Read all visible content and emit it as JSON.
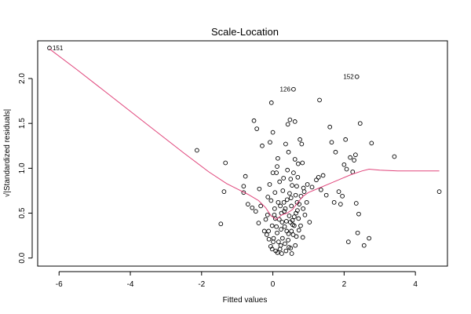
{
  "chart_data": {
    "type": "scatter",
    "title": "Scale-Location",
    "xlabel": "Fitted values",
    "ylabel": "√|Standardized residuals|",
    "xlim": [
      -6.6,
      4.9
    ],
    "ylim": [
      -0.09,
      2.42
    ],
    "x_ticks": [
      -6,
      -4,
      -2,
      0,
      2,
      4
    ],
    "y_ticks": [
      0.0,
      0.5,
      1.0,
      1.5,
      2.0
    ],
    "y_tick_labels": [
      "0.0",
      "0.5",
      "1.0",
      "1.5",
      "2.0"
    ],
    "grid": false,
    "point_style": "open circle",
    "point_color": "#000000",
    "smoother_color": "#e0457b",
    "labeled_points": [
      {
        "label": "151",
        "x": -6.27,
        "y": 2.34
      },
      {
        "label": "152",
        "x": 2.36,
        "y": 2.02
      },
      {
        "label": "126",
        "x": 0.58,
        "y": 1.88
      }
    ],
    "points": [
      [
        -6.27,
        2.34
      ],
      [
        -2.13,
        1.2
      ],
      [
        -1.46,
        0.38
      ],
      [
        -1.37,
        0.74
      ],
      [
        -1.33,
        1.06
      ],
      [
        -0.82,
        0.8
      ],
      [
        -0.82,
        0.73
      ],
      [
        -0.77,
        0.91
      ],
      [
        -0.7,
        0.6
      ],
      [
        -0.58,
        0.56
      ],
      [
        -0.53,
        1.53
      ],
      [
        -0.48,
        0.52
      ],
      [
        -0.45,
        1.44
      ],
      [
        -0.4,
        0.39
      ],
      [
        -0.38,
        0.77
      ],
      [
        -0.34,
        0.58
      ],
      [
        -0.3,
        1.25
      ],
      [
        -0.24,
        0.3
      ],
      [
        -0.2,
        0.43
      ],
      [
        -0.17,
        0.26
      ],
      [
        -0.14,
        0.68
      ],
      [
        -0.11,
        0.21
      ],
      [
        -0.09,
        0.82
      ],
      [
        -0.08,
        1.29
      ],
      [
        -0.06,
        0.13
      ],
      [
        -0.05,
        0.64
      ],
      [
        -0.04,
        1.73
      ],
      [
        -0.02,
        0.36
      ],
      [
        0.0,
        1.4
      ],
      [
        0.02,
        0.22
      ],
      [
        0.04,
        0.48
      ],
      [
        0.06,
        0.73
      ],
      [
        0.08,
        0.08
      ],
      [
        0.1,
        0.95
      ],
      [
        0.12,
        0.28
      ],
      [
        0.14,
        1.11
      ],
      [
        0.16,
        0.18
      ],
      [
        0.18,
        0.43
      ],
      [
        0.21,
        0.58
      ],
      [
        0.23,
        0.32
      ],
      [
        0.25,
        0.05
      ],
      [
        0.27,
        0.22
      ],
      [
        0.3,
        0.89
      ],
      [
        0.32,
        0.52
      ],
      [
        0.34,
        0.16
      ],
      [
        0.36,
        1.27
      ],
      [
        0.38,
        0.41
      ],
      [
        0.4,
        0.65
      ],
      [
        0.42,
        1.49
      ],
      [
        0.44,
        0.27
      ],
      [
        0.46,
        0.47
      ],
      [
        0.48,
        1.54
      ],
      [
        0.5,
        0.11
      ],
      [
        0.52,
        0.58
      ],
      [
        0.54,
        0.81
      ],
      [
        0.56,
        0.37
      ],
      [
        0.58,
        1.88
      ],
      [
        0.6,
        0.46
      ],
      [
        0.62,
        1.52
      ],
      [
        0.64,
        0.7
      ],
      [
        0.66,
        0.24
      ],
      [
        0.69,
        0.53
      ],
      [
        0.71,
        1.05
      ],
      [
        0.73,
        0.31
      ],
      [
        0.76,
        1.32
      ],
      [
        0.79,
        0.69
      ],
      [
        0.81,
        1.27
      ],
      [
        0.84,
        0.23
      ],
      [
        0.86,
        0.78
      ],
      [
        0.88,
        0.74
      ],
      [
        1.03,
        0.4
      ],
      [
        1.1,
        0.79
      ],
      [
        1.22,
        0.87
      ],
      [
        1.28,
        0.9
      ],
      [
        1.31,
        1.76
      ],
      [
        1.35,
        0.76
      ],
      [
        1.41,
        0.92
      ],
      [
        1.5,
        0.7
      ],
      [
        1.6,
        1.46
      ],
      [
        1.65,
        1.29
      ],
      [
        1.72,
        0.62
      ],
      [
        1.76,
        1.18
      ],
      [
        1.85,
        0.74
      ],
      [
        1.9,
        0.6
      ],
      [
        1.95,
        0.69
      ],
      [
        2.0,
        1.04
      ],
      [
        2.04,
        1.32
      ],
      [
        2.07,
        0.99
      ],
      [
        2.12,
        0.18
      ],
      [
        2.17,
        1.12
      ],
      [
        2.24,
        0.96
      ],
      [
        2.28,
        1.09
      ],
      [
        2.32,
        1.15
      ],
      [
        2.34,
        0.61
      ],
      [
        2.36,
        2.02
      ],
      [
        2.38,
        0.28
      ],
      [
        2.41,
        0.49
      ],
      [
        2.45,
        1.5
      ],
      [
        2.56,
        0.14
      ],
      [
        2.7,
        0.22
      ],
      [
        2.77,
        1.28
      ],
      [
        3.41,
        1.13
      ],
      [
        4.67,
        0.74
      ],
      [
        0.15,
        0.62
      ],
      [
        0.2,
        0.1
      ],
      [
        0.33,
        0.35
      ],
      [
        0.43,
        0.2
      ],
      [
        0.47,
        0.72
      ],
      [
        0.55,
        0.42
      ],
      [
        0.63,
        0.14
      ],
      [
        0.68,
        0.62
      ],
      [
        0.72,
        0.44
      ],
      [
        0.05,
        0.55
      ],
      [
        0.1,
        0.35
      ],
      [
        0.28,
        0.75
      ],
      [
        0.37,
        0.08
      ],
      [
        0.52,
        0.3
      ],
      [
        0.58,
        0.95
      ],
      [
        0.01,
        0.18
      ],
      [
        0.13,
        0.06
      ],
      [
        0.19,
        0.85
      ],
      [
        0.26,
        0.4
      ],
      [
        0.35,
        0.55
      ],
      [
        0.41,
        0.98
      ],
      [
        0.45,
        0.12
      ],
      [
        0.51,
        0.67
      ],
      [
        0.57,
        0.26
      ],
      [
        0.65,
        0.5
      ],
      [
        0.7,
        0.9
      ],
      [
        0.78,
        0.36
      ],
      [
        0.85,
        0.55
      ],
      [
        0.9,
        0.48
      ],
      [
        0.97,
        0.82
      ],
      [
        -0.02,
        0.1
      ],
      [
        0.07,
        0.44
      ],
      [
        0.22,
        0.14
      ],
      [
        0.31,
        0.62
      ],
      [
        0.39,
        0.3
      ],
      [
        0.49,
        0.4
      ],
      [
        0.53,
        0.05
      ],
      [
        0.6,
        0.36
      ],
      [
        0.67,
        0.8
      ],
      [
        0.74,
        0.6
      ],
      [
        -0.15,
        0.48
      ],
      [
        -0.12,
        0.3
      ],
      [
        0.0,
        0.95
      ],
      [
        0.12,
        1.02
      ],
      [
        0.24,
        0.5
      ],
      [
        0.44,
        1.18
      ],
      [
        0.5,
        0.88
      ],
      [
        0.62,
        1.1
      ],
      [
        0.83,
        1.06
      ],
      [
        0.95,
        0.62
      ]
    ],
    "smoother": [
      [
        -6.27,
        2.33
      ],
      [
        -5.5,
        2.1
      ],
      [
        -4.5,
        1.79
      ],
      [
        -3.5,
        1.48
      ],
      [
        -2.5,
        1.17
      ],
      [
        -1.8,
        0.96
      ],
      [
        -1.3,
        0.83
      ],
      [
        -1.0,
        0.77
      ],
      [
        -0.7,
        0.71
      ],
      [
        -0.4,
        0.64
      ],
      [
        -0.2,
        0.56
      ],
      [
        -0.05,
        0.47
      ],
      [
        0.1,
        0.43
      ],
      [
        0.25,
        0.48
      ],
      [
        0.4,
        0.5
      ],
      [
        0.55,
        0.54
      ],
      [
        0.7,
        0.62
      ],
      [
        0.85,
        0.69
      ],
      [
        1.0,
        0.73
      ],
      [
        1.3,
        0.78
      ],
      [
        1.6,
        0.83
      ],
      [
        1.9,
        0.88
      ],
      [
        2.2,
        0.93
      ],
      [
        2.5,
        0.97
      ],
      [
        2.7,
        0.99
      ],
      [
        3.0,
        0.98
      ],
      [
        3.5,
        0.97
      ],
      [
        4.0,
        0.97
      ],
      [
        4.67,
        0.97
      ]
    ]
  }
}
